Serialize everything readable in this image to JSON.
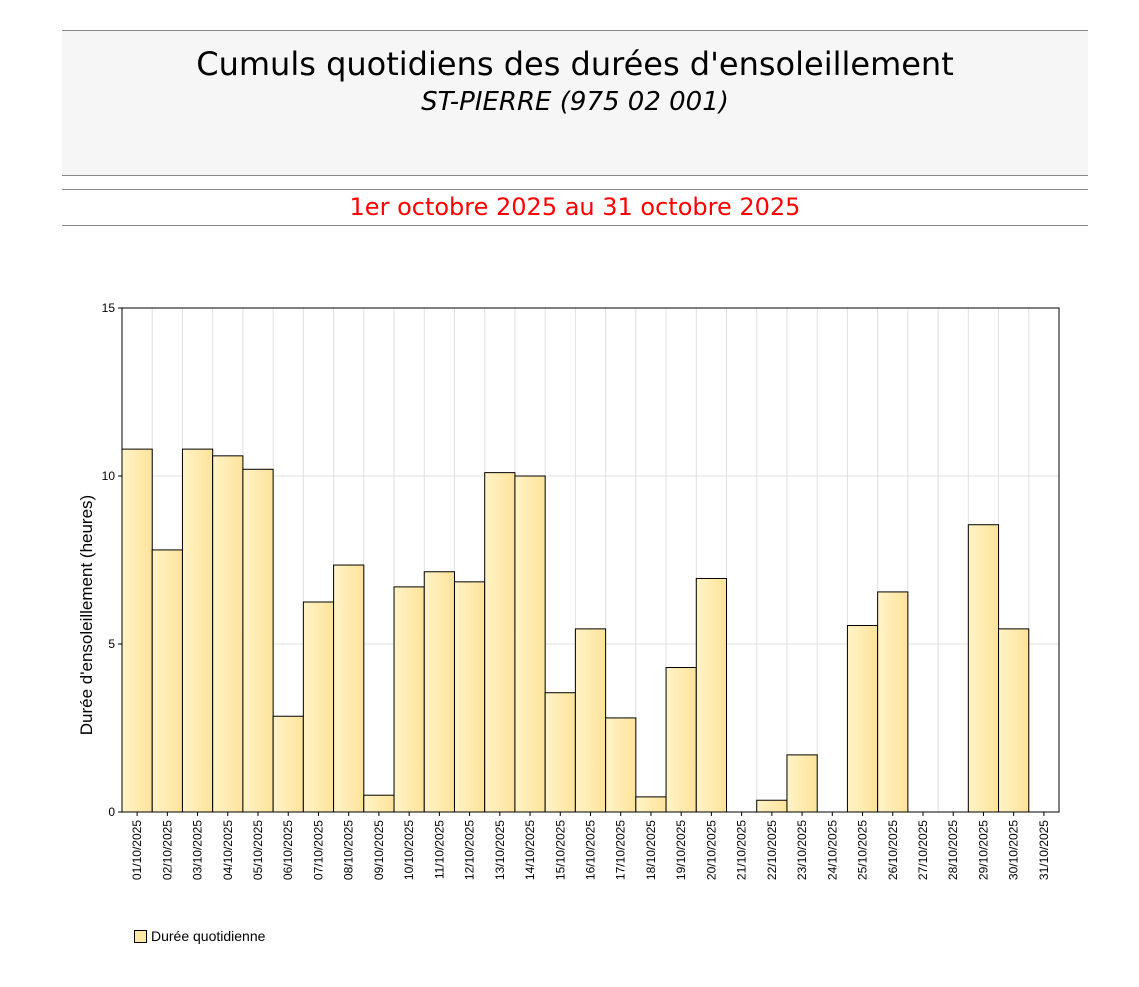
{
  "header": {
    "title": "Cumuls quotidiens des durées d'ensoleillement",
    "subtitle": "ST-PIERRE (975 02 001)",
    "period": "1er octobre 2025 au 31 octobre 2025"
  },
  "colors": {
    "bar_fill_light": "#fff3c7",
    "bar_fill_dark": "#fde39a",
    "bar_stroke": "#000000",
    "period_text": "#ff0000",
    "grid": "#e0e0e0"
  },
  "chart_data": {
    "type": "bar",
    "ylabel": "Durée d'ensoleillement (heures)",
    "ylim": [
      0,
      15
    ],
    "yticks": [
      0,
      5,
      10,
      15
    ],
    "grid": true,
    "legend_position": "bottom-left",
    "categories": [
      "01/10/2025",
      "02/10/2025",
      "03/10/2025",
      "04/10/2025",
      "05/10/2025",
      "06/10/2025",
      "07/10/2025",
      "08/10/2025",
      "09/10/2025",
      "10/10/2025",
      "11/10/2025",
      "12/10/2025",
      "13/10/2025",
      "14/10/2025",
      "15/10/2025",
      "16/10/2025",
      "17/10/2025",
      "18/10/2025",
      "19/10/2025",
      "20/10/2025",
      "21/10/2025",
      "22/10/2025",
      "23/10/2025",
      "24/10/2025",
      "25/10/2025",
      "26/10/2025",
      "27/10/2025",
      "28/10/2025",
      "29/10/2025",
      "30/10/2025",
      "31/10/2025"
    ],
    "series": [
      {
        "name": "Durée quotidienne",
        "values": [
          10.8,
          7.8,
          10.8,
          10.6,
          10.2,
          2.85,
          6.25,
          7.35,
          0.5,
          6.7,
          7.15,
          6.85,
          10.1,
          10.0,
          3.55,
          5.45,
          2.8,
          0.45,
          4.3,
          6.95,
          0,
          0.35,
          1.7,
          0,
          5.55,
          6.55,
          0,
          0,
          8.55,
          5.45,
          0
        ]
      }
    ]
  }
}
